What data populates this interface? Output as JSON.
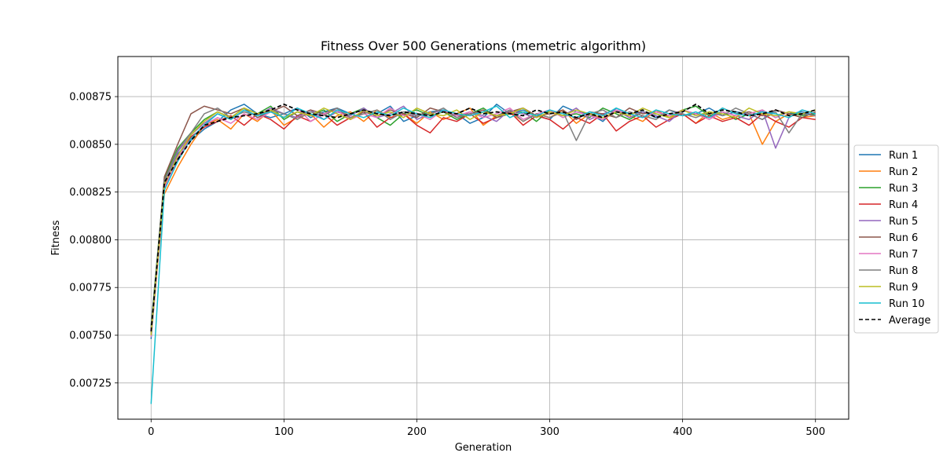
{
  "chart_data": {
    "type": "line",
    "title": "Fitness Over 500 Generations (memetric algorithm)",
    "xlabel": "Generation",
    "ylabel": "Fitness",
    "xlim": [
      -25,
      525
    ],
    "ylim": [
      0.00706,
      0.00896
    ],
    "xticks": [
      0,
      100,
      200,
      300,
      400,
      500
    ],
    "yticks": [
      0.00725,
      0.0075,
      0.00775,
      0.008,
      0.00825,
      0.0085,
      0.00875
    ],
    "ytick_labels": [
      "0.00725",
      "0.00750",
      "0.00775",
      "0.00800",
      "0.00825",
      "0.00850",
      "0.00875"
    ],
    "grid": true,
    "legend_position": "outside-right",
    "series": [
      {
        "name": "Run 1",
        "color": "#1f77b4",
        "style": "solid",
        "values": [
          0.00748,
          0.00829,
          0.00845,
          0.00852,
          0.00858,
          0.00862,
          0.00868,
          0.00871,
          0.00866,
          0.00864,
          0.00866,
          0.00869,
          0.00864,
          0.00867,
          0.00869,
          0.00866,
          0.00868,
          0.00866,
          0.0087,
          0.00862,
          0.00865,
          0.00867,
          0.00868,
          0.00866,
          0.00861,
          0.00864,
          0.00871,
          0.00866,
          0.00868,
          0.00865,
          0.00863,
          0.0087,
          0.00867,
          0.00866,
          0.00862,
          0.00869,
          0.00866,
          0.00867,
          0.00864,
          0.00868,
          0.00865,
          0.00866,
          0.00869,
          0.00865,
          0.00867,
          0.00866,
          0.00863,
          0.00868,
          0.00866,
          0.00867,
          0.00865
        ]
      },
      {
        "name": "Run 2",
        "color": "#ff7f0e",
        "style": "solid",
        "values": [
          0.00752,
          0.00824,
          0.00838,
          0.0085,
          0.0086,
          0.00863,
          0.00858,
          0.00866,
          0.00862,
          0.00868,
          0.0086,
          0.00864,
          0.00866,
          0.00859,
          0.00865,
          0.00867,
          0.00862,
          0.00868,
          0.00864,
          0.00866,
          0.00861,
          0.00867,
          0.00863,
          0.00866,
          0.00869,
          0.0086,
          0.00865,
          0.00867,
          0.00862,
          0.00866,
          0.00864,
          0.00868,
          0.00861,
          0.00866,
          0.00863,
          0.00867,
          0.00865,
          0.00862,
          0.00868,
          0.00864,
          0.00866,
          0.00861,
          0.00867,
          0.00863,
          0.00865,
          0.00866,
          0.0085,
          0.00862,
          0.00866,
          0.00864,
          0.00865
        ]
      },
      {
        "name": "Run 3",
        "color": "#2ca02c",
        "style": "solid",
        "values": [
          0.00755,
          0.00832,
          0.00848,
          0.00856,
          0.00863,
          0.00867,
          0.00864,
          0.00869,
          0.00866,
          0.0087,
          0.00863,
          0.00867,
          0.00865,
          0.00868,
          0.00862,
          0.00866,
          0.00869,
          0.00864,
          0.0086,
          0.00866,
          0.00868,
          0.00865,
          0.00867,
          0.00863,
          0.00866,
          0.00869,
          0.00864,
          0.00866,
          0.00867,
          0.00862,
          0.00868,
          0.00865,
          0.00866,
          0.00864,
          0.00869,
          0.00866,
          0.00863,
          0.00867,
          0.00866,
          0.00864,
          0.00868,
          0.0087,
          0.00865,
          0.00867,
          0.00863,
          0.00866,
          0.00868,
          0.00864,
          0.00867,
          0.00865,
          0.00866
        ]
      },
      {
        "name": "Run 4",
        "color": "#d62728",
        "style": "solid",
        "values": [
          0.0075,
          0.00828,
          0.00842,
          0.00854,
          0.00859,
          0.00862,
          0.00865,
          0.0086,
          0.00866,
          0.00863,
          0.00858,
          0.00865,
          0.00862,
          0.00866,
          0.0086,
          0.00864,
          0.00867,
          0.00859,
          0.00864,
          0.00866,
          0.0086,
          0.00856,
          0.00864,
          0.00862,
          0.00866,
          0.00861,
          0.00864,
          0.00867,
          0.0086,
          0.00865,
          0.00863,
          0.00858,
          0.00864,
          0.00861,
          0.00866,
          0.00857,
          0.00862,
          0.00865,
          0.00859,
          0.00863,
          0.00866,
          0.00861,
          0.00865,
          0.00862,
          0.00864,
          0.0086,
          0.00866,
          0.00862,
          0.00859,
          0.00864,
          0.00863
        ]
      },
      {
        "name": "Run 5",
        "color": "#9467bd",
        "style": "solid",
        "values": [
          0.00753,
          0.0083,
          0.00846,
          0.00855,
          0.00861,
          0.00866,
          0.00863,
          0.00868,
          0.00865,
          0.00869,
          0.00866,
          0.00864,
          0.00868,
          0.00863,
          0.00867,
          0.00865,
          0.00869,
          0.00864,
          0.00866,
          0.0087,
          0.00863,
          0.00866,
          0.00868,
          0.00864,
          0.00867,
          0.00865,
          0.00862,
          0.00868,
          0.00866,
          0.00864,
          0.00867,
          0.00865,
          0.00869,
          0.00863,
          0.00866,
          0.00868,
          0.00864,
          0.00867,
          0.00865,
          0.00862,
          0.00868,
          0.00866,
          0.00864,
          0.00867,
          0.00865,
          0.00863,
          0.00868,
          0.00848,
          0.00864,
          0.00868,
          0.00866
        ]
      },
      {
        "name": "Run 6",
        "color": "#8c564b",
        "style": "solid",
        "values": [
          0.00751,
          0.00833,
          0.0085,
          0.00866,
          0.0087,
          0.00868,
          0.00866,
          0.00869,
          0.00864,
          0.00867,
          0.0087,
          0.00865,
          0.00868,
          0.00866,
          0.00869,
          0.00863,
          0.00867,
          0.00865,
          0.00868,
          0.00866,
          0.00864,
          0.00869,
          0.00867,
          0.00865,
          0.00866,
          0.00868,
          0.00864,
          0.00867,
          0.00869,
          0.00865,
          0.00866,
          0.00868,
          0.00863,
          0.00867,
          0.00866,
          0.00864,
          0.00869,
          0.00866,
          0.00867,
          0.00865,
          0.00868,
          0.00866,
          0.00864,
          0.00869,
          0.00866,
          0.00867,
          0.00865,
          0.00868,
          0.00866,
          0.00864,
          0.00867
        ]
      },
      {
        "name": "Run 7",
        "color": "#e377c2",
        "style": "solid",
        "values": [
          0.00749,
          0.00827,
          0.00843,
          0.00853,
          0.0086,
          0.00864,
          0.00861,
          0.00866,
          0.00863,
          0.00867,
          0.00864,
          0.00869,
          0.00862,
          0.00866,
          0.00868,
          0.00863,
          0.00866,
          0.00864,
          0.00869,
          0.00865,
          0.00866,
          0.00863,
          0.00868,
          0.00865,
          0.00867,
          0.00864,
          0.00866,
          0.00869,
          0.00863,
          0.00866,
          0.00868,
          0.00864,
          0.00867,
          0.00865,
          0.00863,
          0.00868,
          0.00866,
          0.00864,
          0.00867,
          0.00865,
          0.00868,
          0.00866,
          0.00863,
          0.00867,
          0.00865,
          0.00866,
          0.00868,
          0.00864,
          0.00867,
          0.00866,
          0.00865
        ]
      },
      {
        "name": "Run 8",
        "color": "#7f7f7f",
        "style": "solid",
        "values": [
          0.00754,
          0.00831,
          0.00847,
          0.00856,
          0.00866,
          0.00869,
          0.00864,
          0.00867,
          0.00865,
          0.00868,
          0.00866,
          0.00863,
          0.00867,
          0.00865,
          0.00869,
          0.00864,
          0.00866,
          0.00868,
          0.00863,
          0.00867,
          0.00865,
          0.00866,
          0.00869,
          0.00864,
          0.00866,
          0.00867,
          0.00865,
          0.00868,
          0.00862,
          0.00866,
          0.00864,
          0.00867,
          0.00852,
          0.00866,
          0.00868,
          0.00864,
          0.00867,
          0.00865,
          0.00863,
          0.00868,
          0.00866,
          0.00864,
          0.00867,
          0.00865,
          0.00869,
          0.00866,
          0.00863,
          0.00867,
          0.00856,
          0.00866,
          0.00865
        ]
      },
      {
        "name": "Run 9",
        "color": "#bcbd22",
        "style": "solid",
        "values": [
          0.0075,
          0.00829,
          0.00844,
          0.00855,
          0.00862,
          0.00867,
          0.00864,
          0.00869,
          0.00866,
          0.00868,
          0.00864,
          0.00867,
          0.00865,
          0.00869,
          0.00866,
          0.00863,
          0.00868,
          0.00865,
          0.00867,
          0.00864,
          0.00869,
          0.00866,
          0.00865,
          0.00868,
          0.00863,
          0.00867,
          0.00865,
          0.00866,
          0.00869,
          0.00864,
          0.00867,
          0.00865,
          0.00868,
          0.00866,
          0.00864,
          0.00867,
          0.00865,
          0.00869,
          0.00866,
          0.00864,
          0.00868,
          0.00865,
          0.00867,
          0.00866,
          0.00864,
          0.00869,
          0.00866,
          0.00865,
          0.00867,
          0.00866,
          0.00868
        ]
      },
      {
        "name": "Run 10",
        "color": "#17becf",
        "style": "solid",
        "values": [
          0.00714,
          0.00826,
          0.00841,
          0.00853,
          0.0086,
          0.00866,
          0.00863,
          0.00868,
          0.00865,
          0.00867,
          0.00864,
          0.00869,
          0.00866,
          0.00863,
          0.00868,
          0.00866,
          0.00864,
          0.00867,
          0.00865,
          0.00869,
          0.00866,
          0.00864,
          0.00868,
          0.00866,
          0.00865,
          0.00867,
          0.0087,
          0.00864,
          0.00867,
          0.00865,
          0.00868,
          0.00866,
          0.00864,
          0.00867,
          0.00865,
          0.00869,
          0.00866,
          0.00864,
          0.00868,
          0.00866,
          0.00865,
          0.00867,
          0.00864,
          0.00869,
          0.00866,
          0.00865,
          0.00867,
          0.00866,
          0.00864,
          0.00868,
          0.00866
        ]
      },
      {
        "name": "Average",
        "color": "#000000",
        "style": "dashed",
        "values": [
          0.00752,
          0.0083,
          0.00842,
          0.00852,
          0.0086,
          0.00862,
          0.00864,
          0.00865,
          0.00866,
          0.00868,
          0.00871,
          0.00868,
          0.00866,
          0.00865,
          0.00864,
          0.00866,
          0.00868,
          0.00866,
          0.00865,
          0.00867,
          0.00866,
          0.00865,
          0.00867,
          0.00866,
          0.00869,
          0.00866,
          0.00867,
          0.00866,
          0.00865,
          0.00868,
          0.00866,
          0.00867,
          0.00864,
          0.00866,
          0.00864,
          0.00867,
          0.00866,
          0.00868,
          0.00864,
          0.00866,
          0.00867,
          0.00871,
          0.00866,
          0.00868,
          0.00867,
          0.00865,
          0.00866,
          0.00868,
          0.00865,
          0.00866,
          0.00868
        ]
      }
    ]
  }
}
